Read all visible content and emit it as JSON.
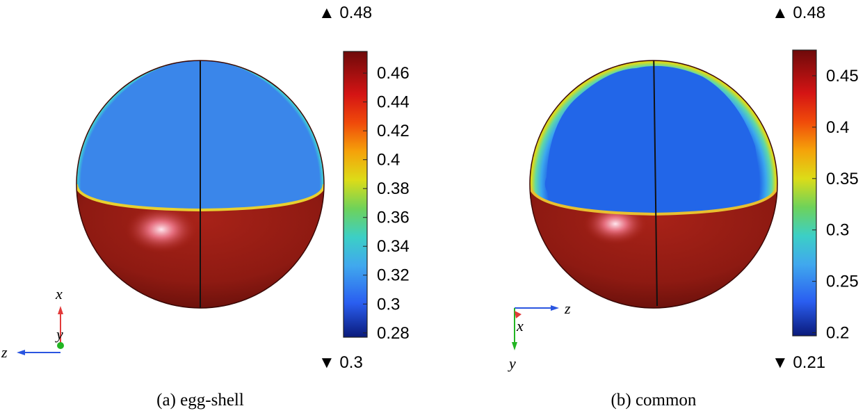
{
  "panels": [
    {
      "id": "a",
      "caption": "(a) egg-shell",
      "max_marker": "▲ 0.48",
      "min_marker": "▼ 0.3",
      "colorbar": {
        "range": [
          0.277,
          0.475
        ],
        "ticks": [
          {
            "value": 0.46,
            "label": "0.46"
          },
          {
            "value": 0.44,
            "label": "0.44"
          },
          {
            "value": 0.42,
            "label": "0.42"
          },
          {
            "value": 0.4,
            "label": "0.4"
          },
          {
            "value": 0.38,
            "label": "0.38"
          },
          {
            "value": 0.36,
            "label": "0.36"
          },
          {
            "value": 0.34,
            "label": "0.34"
          },
          {
            "value": 0.32,
            "label": "0.32"
          },
          {
            "value": 0.3,
            "label": "0.3"
          },
          {
            "value": 0.28,
            "label": "0.28"
          }
        ]
      },
      "triad": {
        "up": "x",
        "side": "z",
        "point": "y"
      }
    },
    {
      "id": "b",
      "caption": "(b) common",
      "max_marker": "▲ 0.48",
      "min_marker": "▼ 0.21",
      "colorbar": {
        "range": [
          0.197,
          0.475
        ],
        "ticks": [
          {
            "value": 0.45,
            "label": "0.45"
          },
          {
            "value": 0.4,
            "label": "0.4"
          },
          {
            "value": 0.35,
            "label": "0.35"
          },
          {
            "value": 0.3,
            "label": "0.3"
          },
          {
            "value": 0.25,
            "label": "0.25"
          },
          {
            "value": 0.2,
            "label": "0.2"
          }
        ]
      },
      "triad": {
        "right": "z",
        "down": "y",
        "point": "x"
      }
    }
  ],
  "colors": {
    "shell": "#8b1a12",
    "interior_a": "#3a86ea",
    "interior_b": "#2266e8",
    "highlight": "#ffd6e4",
    "axis_x": "#e23a3a",
    "axis_y": "#22b522",
    "axis_z": "#2a55e0"
  }
}
